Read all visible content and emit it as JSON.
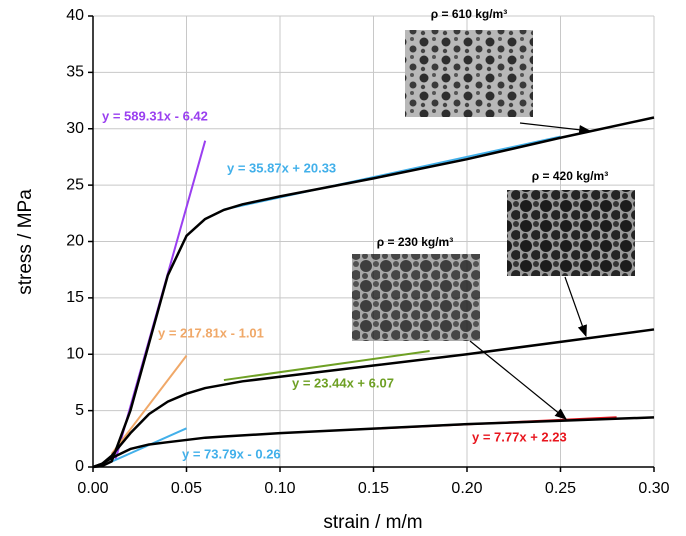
{
  "chart_data": {
    "type": "line",
    "x_label": "strain / m/m",
    "y_label": "stress / MPa",
    "xlim": [
      0,
      0.3
    ],
    "ylim": [
      0,
      40
    ],
    "xticks": [
      {
        "value": 0,
        "label": "0.00"
      },
      0.05,
      {
        "value": 0.1,
        "label": "0.10"
      },
      0.15,
      {
        "value": 0.2,
        "label": "0.20"
      },
      0.25,
      {
        "value": 0.3,
        "label": "0.30"
      }
    ],
    "yticks": [
      0,
      5,
      10,
      15,
      20,
      25,
      30,
      35,
      40
    ],
    "grid": true,
    "x": [
      0,
      0.005,
      0.01,
      0.02,
      0.03,
      0.04,
      0.05,
      0.06,
      0.07,
      0.08,
      0.1,
      0.15,
      0.2,
      0.25,
      0.3
    ],
    "series": [
      {
        "color": "#000000",
        "values": [
          0,
          0.1,
          0.5,
          5,
          11,
          17,
          20.5,
          22,
          22.8,
          23.3,
          24,
          25.6,
          27.3,
          29.2,
          31
        ]
      },
      {
        "color": "#000000",
        "values": [
          0,
          0.3,
          1,
          3,
          4.7,
          5.8,
          6.5,
          7,
          7.3,
          7.6,
          8,
          9,
          10,
          11.1,
          12.2
        ]
      },
      {
        "color": "#000000",
        "values": [
          0,
          0.3,
          0.8,
          1.6,
          2,
          2.2,
          2.4,
          2.6,
          2.7,
          2.8,
          3,
          3.4,
          3.8,
          4.1,
          4.4
        ]
      }
    ],
    "fits": [
      {
        "label": "y = 589.31x - 6.42",
        "color": "#9a3ff0",
        "x": [
          0.012,
          0.06
        ],
        "values": [
          0.65,
          28.94
        ]
      },
      {
        "label": "y = 35.87x + 20.33",
        "color": "#42b0ea",
        "x": [
          0.07,
          0.25
        ],
        "values": [
          22.84,
          29.3
        ]
      },
      {
        "label": "y = 217.81x - 1.01",
        "color": "#f0a868",
        "x": [
          0.01,
          0.05
        ],
        "values": [
          1.17,
          9.88
        ]
      },
      {
        "label": "y = 23.44x + 6.07",
        "color": "#6ea024",
        "x": [
          0.07,
          0.18
        ],
        "values": [
          7.71,
          10.29
        ]
      },
      {
        "label": "y = 73.79x - 0.26",
        "color": "#42b0ea",
        "x": [
          0.005,
          0.05
        ],
        "values": [
          0.11,
          3.43
        ]
      },
      {
        "label": "y = 7.77x + 2.23",
        "color": "#e8161e",
        "x": [
          0.15,
          0.28
        ],
        "values": [
          3.4,
          4.41
        ]
      }
    ],
    "annotations": [
      "ρ = 610 kg/m³",
      "ρ = 420 kg/m³",
      "ρ = 230 kg/m³"
    ]
  }
}
